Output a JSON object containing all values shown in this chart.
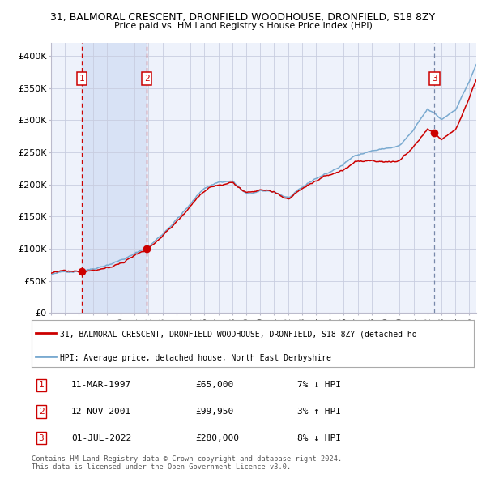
{
  "title1": "31, BALMORAL CRESCENT, DRONFIELD WOODHOUSE, DRONFIELD, S18 8ZY",
  "title2": "Price paid vs. HM Land Registry's House Price Index (HPI)",
  "legend_line1": "31, BALMORAL CRESCENT, DRONFIELD WOODHOUSE, DRONFIELD, S18 8ZY (detached ho",
  "legend_line2": "HPI: Average price, detached house, North East Derbyshire",
  "footer1": "Contains HM Land Registry data © Crown copyright and database right 2024.",
  "footer2": "This data is licensed under the Open Government Licence v3.0.",
  "transactions": [
    {
      "num": 1,
      "date": "11-MAR-1997",
      "price": 65000,
      "hpi_rel": "7% ↓ HPI",
      "year": 1997.19
    },
    {
      "num": 2,
      "date": "12-NOV-2001",
      "price": 99950,
      "hpi_rel": "3% ↑ HPI",
      "year": 2001.87
    },
    {
      "num": 3,
      "date": "01-JUL-2022",
      "price": 280000,
      "hpi_rel": "8% ↓ HPI",
      "year": 2022.5
    }
  ],
  "xmin": 1995,
  "xmax": 2025.5,
  "ymin": 0,
  "ymax": 420000,
  "yticks": [
    0,
    50000,
    100000,
    150000,
    200000,
    250000,
    300000,
    350000,
    400000
  ],
  "ytick_labels": [
    "£0",
    "£50K",
    "£100K",
    "£150K",
    "£200K",
    "£250K",
    "£300K",
    "£350K",
    "£400K"
  ],
  "background_color": "#ffffff",
  "plot_bg_color": "#eef2fb",
  "grid_color": "#c8cde0",
  "line_red": "#cc0000",
  "line_blue": "#7aaad0",
  "shade_color": "#d8e2f5",
  "dashed_red": "#cc0000",
  "dashed_gray": "#7788aa",
  "marker_color": "#cc0000",
  "box_color": "#cc0000"
}
